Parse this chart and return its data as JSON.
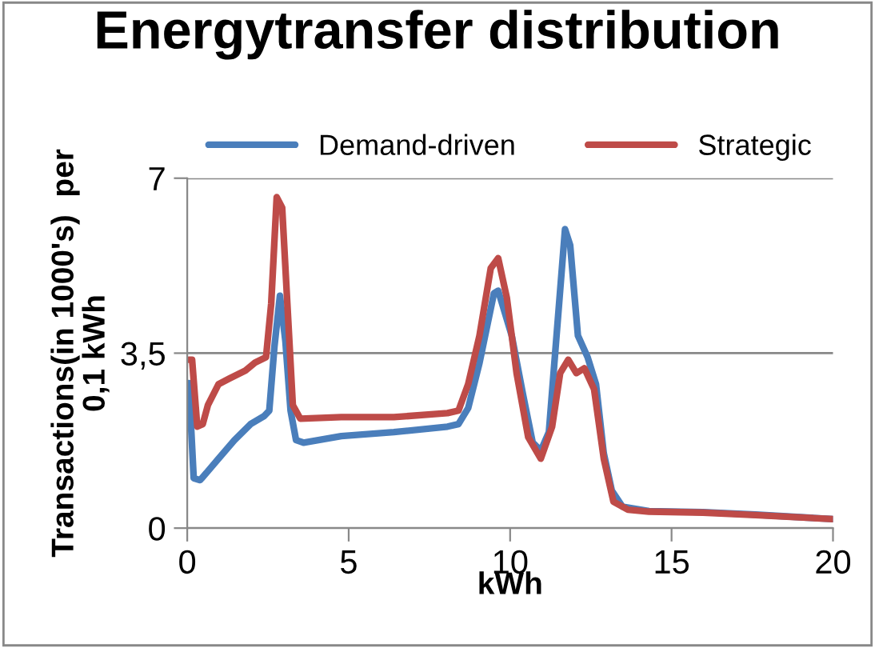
{
  "chart_data": {
    "type": "line",
    "title": "Energytransfer distribution",
    "xlabel": "kWh",
    "ylabel": "Transactions(in 1000's)  per\n0,1 kWh",
    "xlim": [
      0,
      20
    ],
    "xticks": [
      0,
      5,
      10,
      15,
      20
    ],
    "ylim": [
      0,
      7
    ],
    "yticks": [
      0,
      {
        "value": 3.5,
        "label": "3,5"
      },
      7
    ],
    "grid": "y",
    "legend": "top",
    "marker": "none",
    "line_style": "solid",
    "series": [
      {
        "name": "Demand-driven",
        "color": "#4a7ebb",
        "x": [
          0.05,
          0.2,
          0.4,
          0.97,
          1.46,
          1.96,
          2.38,
          2.54,
          2.7,
          2.87,
          3.04,
          3.2,
          3.37,
          3.6,
          4.77,
          6.4,
          8.06,
          8.4,
          8.7,
          9.05,
          9.5,
          9.63,
          10.05,
          10.4,
          10.7,
          10.95,
          11.2,
          11.45,
          11.7,
          11.86,
          12.1,
          12.4,
          12.66,
          12.9,
          13.15,
          13.48,
          14.3,
          15.97,
          17.6,
          20.0
        ],
        "values": [
          2.9,
          1.0,
          0.96,
          1.39,
          1.76,
          2.08,
          2.24,
          2.35,
          3.63,
          4.65,
          3.74,
          2.35,
          1.76,
          1.71,
          1.84,
          1.92,
          2.03,
          2.08,
          2.4,
          3.3,
          4.7,
          4.75,
          3.85,
          2.67,
          1.71,
          1.55,
          1.92,
          3.95,
          5.98,
          5.66,
          3.85,
          3.42,
          2.88,
          1.5,
          0.75,
          0.43,
          0.34,
          0.32,
          0.27,
          0.18
        ]
      },
      {
        "name": "Strategic",
        "color": "#be4b48",
        "x": [
          0.05,
          0.15,
          0.31,
          0.48,
          0.64,
          0.97,
          1.3,
          1.8,
          2.1,
          2.44,
          2.6,
          2.77,
          2.94,
          3.1,
          3.27,
          3.5,
          4.77,
          6.4,
          8.06,
          8.4,
          8.7,
          9.05,
          9.4,
          9.63,
          9.9,
          10.2,
          10.56,
          10.95,
          11.3,
          11.55,
          11.8,
          12.05,
          12.3,
          12.6,
          12.9,
          13.2,
          13.65,
          14.3,
          15.97,
          17.6,
          20.0
        ],
        "values": [
          3.37,
          3.37,
          2.03,
          2.08,
          2.46,
          2.88,
          2.99,
          3.15,
          3.31,
          3.42,
          4.49,
          6.62,
          6.41,
          4.49,
          2.46,
          2.19,
          2.22,
          2.22,
          2.3,
          2.35,
          2.88,
          3.85,
          5.2,
          5.4,
          4.6,
          3.1,
          1.82,
          1.39,
          2.03,
          3.1,
          3.37,
          3.1,
          3.2,
          2.78,
          1.39,
          0.53,
          0.37,
          0.33,
          0.31,
          0.26,
          0.18
        ]
      }
    ]
  }
}
